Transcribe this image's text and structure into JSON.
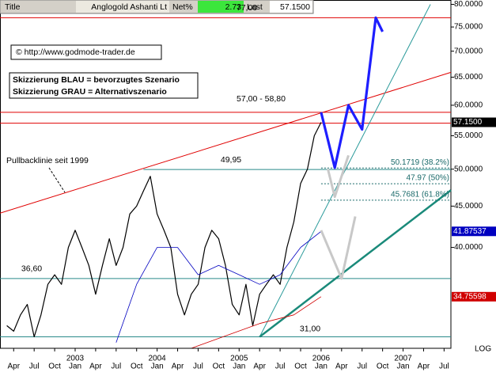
{
  "header": {
    "title_label": "Title",
    "name": "Anglogold Ashanti Lt",
    "net_label": "Net%",
    "net": "2.73",
    "last_label": "Last",
    "last": "57.1500"
  },
  "chart_data": {
    "type": "line",
    "log_scale": true,
    "scale_label": "LOG",
    "xlim": [
      "2002-02",
      "2007-08"
    ],
    "ylim": [
      30,
      81
    ],
    "yticks": [
      {
        "value": 40,
        "label": "40.0000"
      },
      {
        "value": 45,
        "label": "45.0000"
      },
      {
        "value": 50,
        "label": "50.0000"
      },
      {
        "value": 55,
        "label": "55.0000"
      },
      {
        "value": 60,
        "label": "60.0000"
      },
      {
        "value": 65,
        "label": "65.0000"
      },
      {
        "value": 70,
        "label": "70.0000"
      },
      {
        "value": 75,
        "label": "75.0000"
      },
      {
        "value": 80,
        "label": "80.0000"
      }
    ],
    "xticks": [
      {
        "value": "2002-04",
        "label": "Apr"
      },
      {
        "value": "2002-07",
        "label": "Jul"
      },
      {
        "value": "2002-10",
        "label": "Oct"
      },
      {
        "value": "2003-01",
        "label": "Jan"
      },
      {
        "value": "2003-04",
        "label": "Apr"
      },
      {
        "value": "2003-07",
        "label": "Jul"
      },
      {
        "value": "2003-10",
        "label": "Oct"
      },
      {
        "value": "2004-01",
        "label": "Jan"
      },
      {
        "value": "2004-04",
        "label": "Apr"
      },
      {
        "value": "2004-07",
        "label": "Jul"
      },
      {
        "value": "2004-10",
        "label": "Oct"
      },
      {
        "value": "2005-01",
        "label": "Jan"
      },
      {
        "value": "2005-04",
        "label": "Apr"
      },
      {
        "value": "2005-07",
        "label": "Jul"
      },
      {
        "value": "2005-10",
        "label": "Oct"
      },
      {
        "value": "2006-01",
        "label": "Jan"
      },
      {
        "value": "2006-04",
        "label": "Apr"
      },
      {
        "value": "2006-07",
        "label": "Jul"
      },
      {
        "value": "2006-10",
        "label": "Oct"
      },
      {
        "value": "2007-01",
        "label": "Jan"
      },
      {
        "value": "2007-04",
        "label": "Apr"
      },
      {
        "value": "2007-07",
        "label": "Jul"
      }
    ],
    "year_ticks": [
      {
        "value": "2003-01",
        "label": "2003"
      },
      {
        "value": "2004-01",
        "label": "2004"
      },
      {
        "value": "2005-01",
        "label": "2005"
      },
      {
        "value": "2006-01",
        "label": "2006"
      },
      {
        "value": "2007-01",
        "label": "2007"
      }
    ],
    "series": [
      {
        "color": "#000000",
        "width": 1.2,
        "end_label": "57.1500",
        "x": [
          "2002-03",
          "2002-04",
          "2002-05",
          "2002-06",
          "2002-07",
          "2002-08",
          "2002-09",
          "2002-10",
          "2002-11",
          "2002-12",
          "2003-01",
          "2003-02",
          "2003-03",
          "2003-04",
          "2003-05",
          "2003-06",
          "2003-07",
          "2003-08",
          "2003-09",
          "2003-10",
          "2003-11",
          "2003-12",
          "2004-01",
          "2004-02",
          "2004-03",
          "2004-04",
          "2004-05",
          "2004-06",
          "2004-07",
          "2004-08",
          "2004-09",
          "2004-10",
          "2004-11",
          "2004-12",
          "2005-01",
          "2005-02",
          "2005-03",
          "2005-04",
          "2005-05",
          "2005-06",
          "2005-07",
          "2005-08",
          "2005-09",
          "2005-10",
          "2005-11",
          "2005-12",
          "2006-01"
        ],
        "values": [
          32,
          31.5,
          33,
          34,
          31,
          33,
          36,
          37,
          36,
          40,
          42,
          40,
          38,
          35,
          38,
          41,
          38,
          40,
          44,
          45,
          47,
          49,
          44,
          42,
          40,
          35,
          33,
          35,
          36,
          40,
          42,
          41,
          38,
          34,
          33,
          36,
          32,
          35,
          36,
          37,
          36,
          40,
          43,
          48,
          50,
          55,
          57.15
        ]
      },
      {
        "color": "#0000c0",
        "width": 0.8,
        "end_label": "41.87537",
        "x": [
          "2003-07",
          "2003-10",
          "2004-01",
          "2004-04",
          "2004-07",
          "2004-10",
          "2005-01",
          "2005-04",
          "2005-07",
          "2005-10",
          "2006-01"
        ],
        "values": [
          30.5,
          36,
          40,
          40,
          37,
          38,
          37,
          36,
          37,
          40,
          41.87537
        ]
      },
      {
        "color": "#d00000",
        "width": 0.8,
        "end_label": "34.75598",
        "x": [
          "2004-06",
          "2004-12",
          "2005-04",
          "2005-09",
          "2006-01"
        ],
        "values": [
          30,
          31.3,
          32.2,
          33,
          34.75598
        ]
      },
      {
        "color": "#1e1eff",
        "width": 3.2,
        "x": [
          "2006-01",
          "2006-03",
          "2006-05",
          "2006-07",
          "2006-09",
          "2006-10"
        ],
        "values": [
          58.8,
          50.2,
          60,
          56,
          77,
          74
        ]
      },
      {
        "color": "#c8c8c8",
        "width": 3,
        "x": [
          "2006-02",
          "2006-03",
          "2006-05"
        ],
        "values": [
          50,
          46.2,
          52
        ]
      },
      {
        "color": "#c8c8c8",
        "width": 3,
        "x": [
          "2006-01",
          "2006-04",
          "2006-06"
        ],
        "values": [
          42,
          36.6,
          43.7
        ]
      }
    ],
    "levels": [
      {
        "value": 77,
        "label": "77,00",
        "color": "#e00000"
      },
      {
        "value": 58.8,
        "color": "#e00000"
      },
      {
        "value": 57,
        "color": "#e00000"
      },
      {
        "value": 49.95,
        "label": "49,95",
        "color": "#2a8a8a",
        "start": "2003-11"
      },
      {
        "value": 36.6,
        "label": "36,60",
        "color": "#2a8a8a"
      },
      {
        "value": 31,
        "label": "31,00",
        "color": "#2a8a8a"
      }
    ],
    "fib_levels": [
      {
        "value": 50.1719,
        "label": "50.1719 (38.2%)"
      },
      {
        "value": 47.97,
        "label": "47.97 (50%)"
      },
      {
        "value": 45.7681,
        "label": "45.7681 (61.8%)"
      }
    ],
    "fib_start": "2006-01",
    "fib_color": "#1a6a6a",
    "trendlines": [
      {
        "x": [
          "2002-02",
          "2007-08"
        ],
        "values": [
          44.1,
          65.9
        ],
        "color": "#e00000",
        "width": 1
      },
      {
        "x": [
          "2005-04",
          "2007-05"
        ],
        "values": [
          31,
          80
        ],
        "color": "#2a9a9a",
        "width": 1
      },
      {
        "x": [
          "2005-04",
          "2007-08"
        ],
        "values": [
          31,
          47.1
        ],
        "color": "#1a8a7a",
        "width": 2.5
      }
    ],
    "annotations": [
      {
        "text": "© http://www.godmode-trader.de"
      },
      {
        "text": "Skizzierung BLAU = bevorzugtes Szenario"
      },
      {
        "text": "Skizzierung GRAU = Alternativszenario"
      },
      {
        "text": "Pullbacklinie seit 1999"
      },
      {
        "text": "57,00 - 58,80"
      }
    ]
  }
}
